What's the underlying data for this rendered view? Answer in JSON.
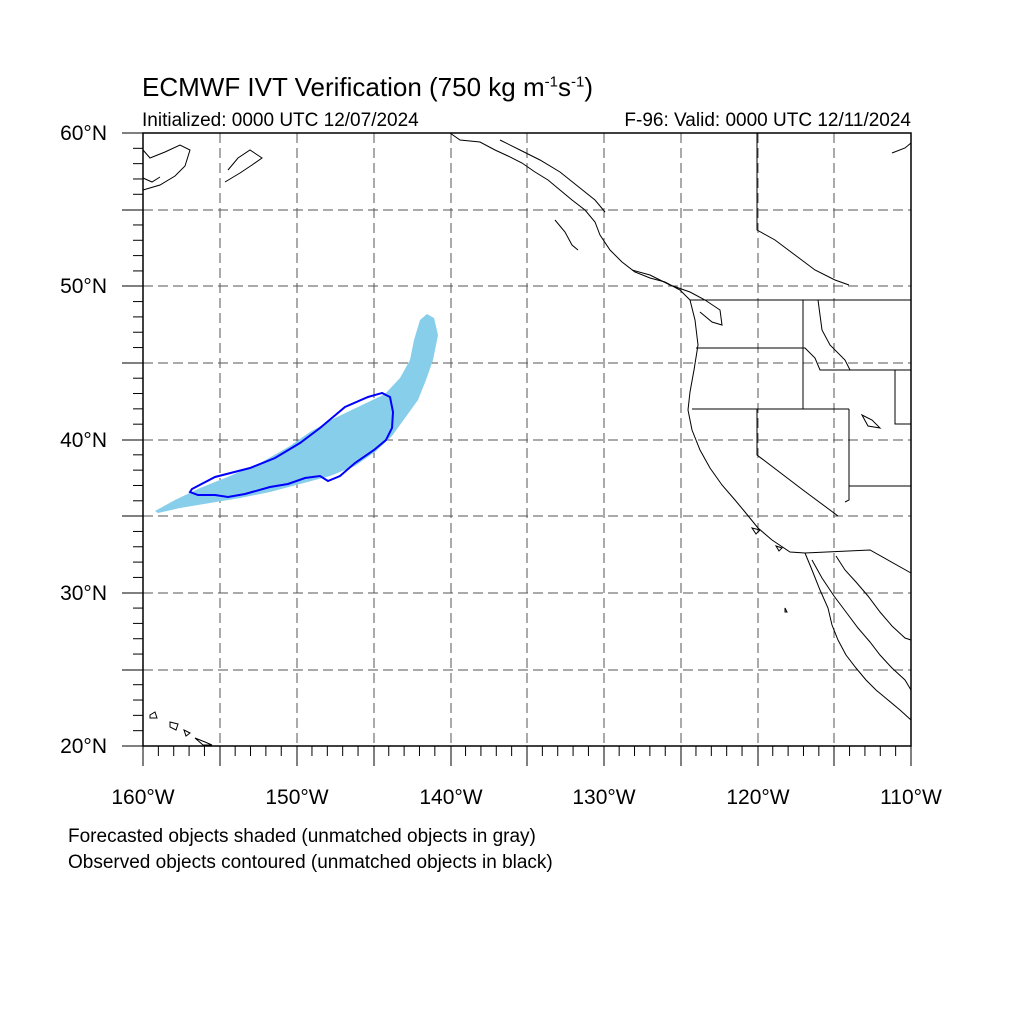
{
  "title": {
    "prefix": "ECMWF IVT Verification (750 kg m",
    "exp1": "-1",
    "mid": "s",
    "exp2": "-1",
    "suffix": ")"
  },
  "initialized": "Initialized: 0000 UTC 12/07/2024",
  "valid": "F-96: Valid: 0000 UTC 12/11/2024",
  "lat_labels": [
    "60°N",
    "50°N",
    "40°N",
    "30°N",
    "20°N"
  ],
  "lon_labels": [
    "160°W",
    "150°W",
    "140°W",
    "130°W",
    "120°W",
    "110°W"
  ],
  "footnotes": [
    "Forecasted objects shaded (unmatched objects in gray)",
    "Observed objects contoured (unmatched objects in black)"
  ],
  "map": {
    "lon_range": [
      -160,
      -110
    ],
    "lat_range": [
      20,
      60
    ],
    "grid_interval_deg": 5,
    "colors": {
      "forecast_shading": "#87ceeb",
      "observed_contour": "#0000ff",
      "coastline": "#000000",
      "grid": "#555555"
    }
  }
}
